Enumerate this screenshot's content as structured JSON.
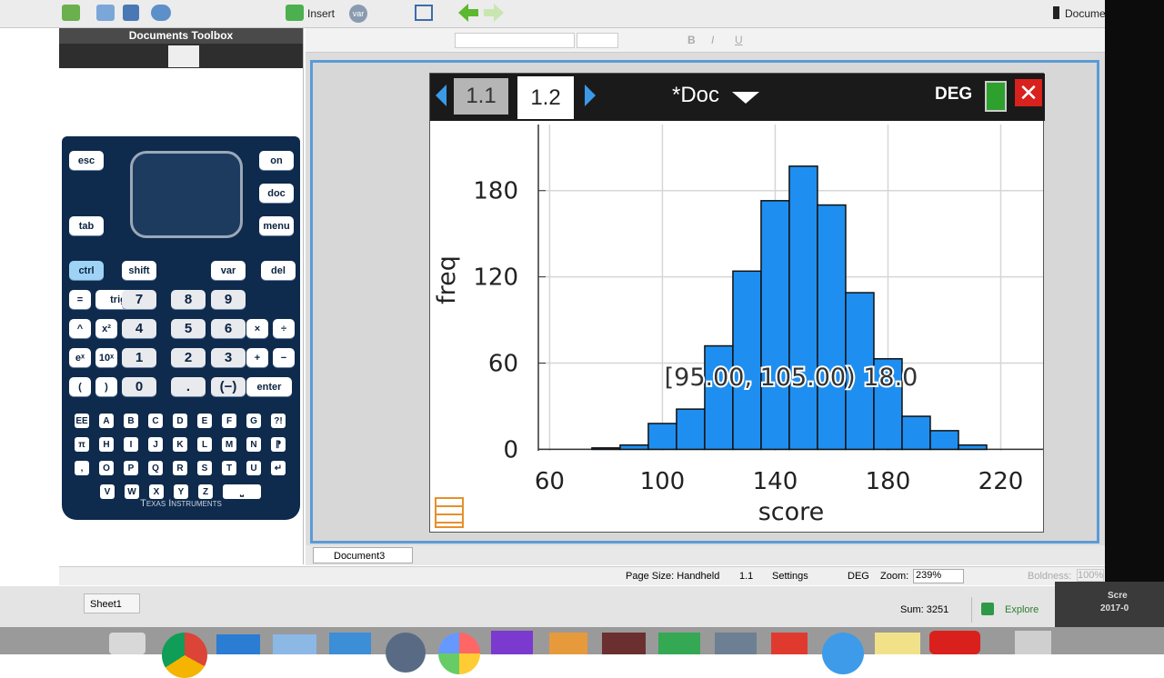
{
  "app": {
    "toolbar": {
      "insert": "Insert",
      "var": "var",
      "document": "Documen",
      "format": [
        "B",
        "I",
        "U"
      ]
    },
    "toolbox": {
      "title": "Documents Toolbox"
    },
    "keypad": {
      "nav_left": [
        "esc",
        "tab"
      ],
      "nav_right": [
        "on",
        "doc",
        "menu"
      ],
      "rows": [
        [
          "ctrl",
          "shift",
          "var",
          "del"
        ],
        [
          "=",
          "trig",
          "7",
          "8",
          "9"
        ],
        [
          "^",
          "x²",
          "4",
          "5",
          "6",
          "×",
          "÷"
        ],
        [
          "eˣ",
          "10ˣ",
          "1",
          "2",
          "3",
          "+",
          "−"
        ],
        [
          "(",
          ")",
          "0",
          ".",
          "(−)",
          "enter"
        ]
      ],
      "letters": [
        [
          "EE",
          "A",
          "B",
          "C",
          "D",
          "E",
          "F",
          "G",
          "?!"
        ],
        [
          "π",
          "H",
          "I",
          "J",
          "K",
          "L",
          "M",
          "N",
          "⁋"
        ],
        [
          ",",
          "O",
          "P",
          "Q",
          "R",
          "S",
          "T",
          "U",
          "↵"
        ],
        [
          "V",
          "W",
          "X",
          "Y",
          "Z",
          "⎵"
        ]
      ],
      "brand": "Texas Instruments"
    },
    "handheld": {
      "tabs": [
        "1.1",
        "1.2"
      ],
      "doc_title": "*Doc",
      "mode": "DEG"
    },
    "doc_tab": "Document3",
    "status": {
      "page_size": "Page Size: Handheld",
      "page": "1.1",
      "settings": "Settings",
      "mode": "DEG",
      "zoom_label": "Zoom:",
      "zoom": "239%",
      "boldness_label": "Boldness:",
      "boldness": "100%"
    },
    "sheet": {
      "name": "Sheet1",
      "sum": "Sum: 3251",
      "explore": "Explore"
    },
    "corner": {
      "line1": "Scre",
      "line2": "2017-0"
    }
  },
  "chart_data": {
    "type": "histogram",
    "x_label": "score",
    "y_label": "freq",
    "bins": [
      75,
      85,
      95,
      105,
      115,
      125,
      135,
      145,
      155,
      165,
      175,
      185,
      195,
      205,
      215
    ],
    "counts": [
      1,
      3,
      18,
      28,
      72,
      124,
      173,
      197,
      170,
      109,
      63,
      23,
      13,
      3
    ],
    "color": "#1e8ff0",
    "xlim": [
      56,
      235
    ],
    "ylim": [
      -1,
      226
    ],
    "xticks": [
      60,
      100,
      140,
      180,
      220
    ],
    "yticks": [
      0,
      60,
      120,
      180
    ],
    "grid": true,
    "annotation": "[95.00, 105.00) 18.0"
  }
}
